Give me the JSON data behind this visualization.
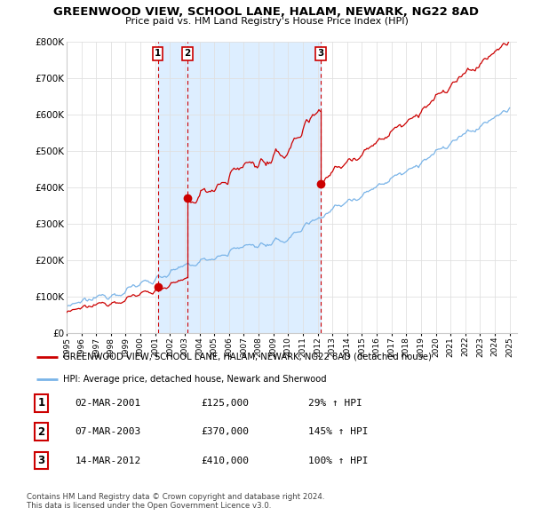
{
  "title": "GREENWOOD VIEW, SCHOOL LANE, HALAM, NEWARK, NG22 8AD",
  "subtitle": "Price paid vs. HM Land Registry's House Price Index (HPI)",
  "ylim": [
    0,
    800000
  ],
  "yticks": [
    0,
    100000,
    200000,
    300000,
    400000,
    500000,
    600000,
    700000,
    800000
  ],
  "ytick_labels": [
    "£0",
    "£100K",
    "£200K",
    "£300K",
    "£400K",
    "£500K",
    "£600K",
    "£700K",
    "£800K"
  ],
  "background_color": "#ffffff",
  "grid_color": "#e0e0e0",
  "sale_color": "#cc0000",
  "hpi_color": "#7ab4e8",
  "shade_color": "#ddeeff",
  "sale_label": "GREENWOOD VIEW, SCHOOL LANE, HALAM, NEWARK, NG22 8AD (detached house)",
  "hpi_label": "HPI: Average price, detached house, Newark and Sherwood",
  "transactions": [
    {
      "num": 1,
      "date": "02-MAR-2001",
      "price": 125000,
      "pct": "29%",
      "x_year": 2001.17
    },
    {
      "num": 2,
      "date": "07-MAR-2003",
      "price": 370000,
      "pct": "145%",
      "x_year": 2003.18
    },
    {
      "num": 3,
      "date": "14-MAR-2012",
      "price": 410000,
      "pct": "100%",
      "x_year": 2012.2
    }
  ],
  "footnote1": "Contains HM Land Registry data © Crown copyright and database right 2024.",
  "footnote2": "This data is licensed under the Open Government Licence v3.0.",
  "xlim_left": 1995.0,
  "xlim_right": 2025.5
}
